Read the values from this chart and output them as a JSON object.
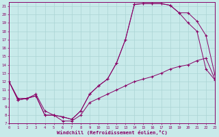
{
  "bg_color": "#c8eaea",
  "grid_color": "#aad4d4",
  "line_color": "#880066",
  "xlim": [
    0,
    23
  ],
  "ylim": [
    7,
    21.5
  ],
  "xticks": [
    0,
    1,
    2,
    3,
    4,
    5,
    6,
    7,
    8,
    9,
    10,
    11,
    12,
    13,
    14,
    15,
    16,
    17,
    18,
    19,
    20,
    21,
    22,
    23
  ],
  "yticks": [
    7,
    8,
    9,
    10,
    11,
    12,
    13,
    14,
    15,
    16,
    17,
    18,
    19,
    20,
    21
  ],
  "xlabel": "Windchill (Refroidissement éolien,°C)",
  "curve1_x": [
    0,
    1,
    2,
    3,
    4,
    5,
    6,
    7,
    8,
    9,
    10,
    11,
    12,
    13,
    14,
    15,
    16,
    17,
    18,
    19,
    20,
    21,
    22,
    23
  ],
  "curve1_y": [
    12.0,
    9.8,
    10.0,
    10.3,
    8.0,
    8.0,
    7.8,
    7.5,
    8.5,
    10.5,
    11.5,
    12.3,
    14.2,
    17.0,
    21.2,
    21.3,
    21.3,
    21.3,
    21.1,
    20.2,
    19.0,
    18.0,
    13.5,
    12.2
  ],
  "curve2_x": [
    0,
    1,
    2,
    3,
    4,
    5,
    6,
    7,
    8,
    9,
    10,
    11,
    12,
    13,
    14,
    15,
    16,
    17,
    18,
    19,
    20,
    21,
    22,
    23
  ],
  "curve2_y": [
    12.0,
    9.8,
    10.0,
    10.3,
    8.0,
    8.0,
    7.8,
    7.5,
    8.5,
    10.5,
    11.5,
    12.3,
    14.2,
    17.0,
    21.2,
    21.3,
    21.3,
    21.3,
    21.1,
    20.2,
    20.2,
    19.2,
    17.5,
    12.8
  ],
  "curve3_x": [
    0,
    1,
    2,
    3,
    4,
    5,
    6,
    7,
    8,
    9,
    10,
    11,
    12,
    13,
    14,
    15,
    16,
    17,
    18,
    19,
    20,
    21,
    22,
    23
  ],
  "curve3_y": [
    12.0,
    10.0,
    10.0,
    10.5,
    8.5,
    8.0,
    7.3,
    7.3,
    8.0,
    9.5,
    10.0,
    10.5,
    11.0,
    11.5,
    12.0,
    12.3,
    12.6,
    13.0,
    13.5,
    13.8,
    14.0,
    14.5,
    14.8,
    12.3
  ]
}
